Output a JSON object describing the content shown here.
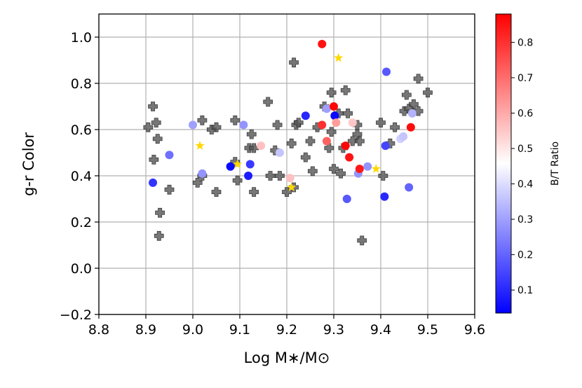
{
  "chart_data": {
    "type": "scatter",
    "xlabel": "Log M∗/M⊙",
    "ylabel": "g-r Color",
    "xlim": [
      8.8,
      9.6
    ],
    "ylim": [
      -0.2,
      1.1
    ],
    "xticks": [
      "8.8",
      "8.9",
      "9.0",
      "9.1",
      "9.2",
      "9.3",
      "9.4",
      "9.5",
      "9.6"
    ],
    "yticks": [
      "−0.2",
      "0.0",
      "0.2",
      "0.4",
      "0.6",
      "0.8",
      "1.0"
    ],
    "grid": true,
    "colorbar": {
      "label": "B/T Ratio",
      "range": [
        0.035,
        0.88
      ],
      "ticks": [
        "0.1",
        "0.2",
        "0.3",
        "0.4",
        "0.5",
        "0.6",
        "0.7",
        "0.8"
      ],
      "colormap": "bwr",
      "low_color": "#0000ff",
      "mid_color": "#ffffff",
      "high_color": "#ff0000"
    },
    "series": [
      {
        "marker": "plus",
        "color": "#555555",
        "points": [
          [
            8.905,
            0.61
          ],
          [
            8.915,
            0.7
          ],
          [
            8.917,
            0.47
          ],
          [
            8.922,
            0.63
          ],
          [
            8.925,
            0.56
          ],
          [
            8.93,
            0.24
          ],
          [
            8.928,
            0.14
          ],
          [
            8.95,
            0.34
          ],
          [
            9.01,
            0.37
          ],
          [
            9.02,
            0.64
          ],
          [
            9.02,
            0.4
          ],
          [
            9.04,
            0.6
          ],
          [
            9.05,
            0.33
          ],
          [
            9.05,
            0.61
          ],
          [
            9.09,
            0.64
          ],
          [
            9.09,
            0.46
          ],
          [
            9.095,
            0.38
          ],
          [
            9.12,
            0.52
          ],
          [
            9.125,
            0.58
          ],
          [
            9.13,
            0.52
          ],
          [
            9.13,
            0.33
          ],
          [
            9.16,
            0.72
          ],
          [
            9.165,
            0.4
          ],
          [
            9.175,
            0.51
          ],
          [
            9.18,
            0.62
          ],
          [
            9.185,
            0.4
          ],
          [
            9.2,
            0.33
          ],
          [
            9.21,
            0.54
          ],
          [
            9.215,
            0.35
          ],
          [
            9.215,
            0.89
          ],
          [
            9.22,
            0.62
          ],
          [
            9.225,
            0.63
          ],
          [
            9.24,
            0.48
          ],
          [
            9.25,
            0.55
          ],
          [
            9.255,
            0.42
          ],
          [
            9.265,
            0.61
          ],
          [
            9.28,
            0.7
          ],
          [
            9.29,
            0.52
          ],
          [
            9.295,
            0.76
          ],
          [
            9.295,
            0.59
          ],
          [
            9.3,
            0.43
          ],
          [
            9.31,
            0.67
          ],
          [
            9.315,
            0.41
          ],
          [
            9.32,
            0.52
          ],
          [
            9.325,
            0.77
          ],
          [
            9.33,
            0.67
          ],
          [
            9.34,
            0.55
          ],
          [
            9.35,
            0.62
          ],
          [
            9.35,
            0.58
          ],
          [
            9.355,
            0.55
          ],
          [
            9.36,
            0.12
          ],
          [
            9.4,
            0.63
          ],
          [
            9.405,
            0.4
          ],
          [
            9.42,
            0.54
          ],
          [
            9.43,
            0.61
          ],
          [
            9.45,
            0.68
          ],
          [
            9.455,
            0.75
          ],
          [
            9.46,
            0.69
          ],
          [
            9.47,
            0.71
          ],
          [
            9.48,
            0.82
          ],
          [
            9.48,
            0.68
          ],
          [
            9.5,
            0.76
          ]
        ]
      },
      {
        "marker": "star",
        "color": "#ffd700",
        "points": [
          [
            9.015,
            0.53
          ],
          [
            9.095,
            0.45
          ],
          [
            9.21,
            0.35
          ],
          [
            9.31,
            0.91
          ],
          [
            9.39,
            0.43
          ]
        ]
      },
      {
        "marker": "circle",
        "colored_by": "B/T Ratio",
        "points": [
          [
            8.915,
            0.37,
            0.12
          ],
          [
            8.95,
            0.49,
            0.22
          ],
          [
            9.0,
            0.62,
            0.3
          ],
          [
            9.02,
            0.41,
            0.28
          ],
          [
            9.08,
            0.44,
            0.05
          ],
          [
            9.108,
            0.62,
            0.28
          ],
          [
            9.118,
            0.4,
            0.08
          ],
          [
            9.122,
            0.45,
            0.13
          ],
          [
            9.145,
            0.53,
            0.56
          ],
          [
            9.185,
            0.5,
            0.36
          ],
          [
            9.207,
            0.39,
            0.56
          ],
          [
            9.24,
            0.66,
            0.1
          ],
          [
            9.275,
            0.97,
            0.85
          ],
          [
            9.275,
            0.62,
            0.8
          ],
          [
            9.285,
            0.55,
            0.72
          ],
          [
            9.285,
            0.69,
            0.3
          ],
          [
            9.3,
            0.7,
            0.87
          ],
          [
            9.302,
            0.66,
            0.05
          ],
          [
            9.305,
            0.63,
            0.62
          ],
          [
            9.325,
            0.53,
            0.87
          ],
          [
            9.328,
            0.3,
            0.18
          ],
          [
            9.333,
            0.48,
            0.85
          ],
          [
            9.34,
            0.63,
            0.55
          ],
          [
            9.352,
            0.41,
            0.28
          ],
          [
            9.355,
            0.43,
            0.84
          ],
          [
            9.372,
            0.44,
            0.28
          ],
          [
            9.408,
            0.31,
            0.1
          ],
          [
            9.41,
            0.53,
            0.15
          ],
          [
            9.412,
            0.85,
            0.18
          ],
          [
            9.442,
            0.56,
            0.38
          ],
          [
            9.448,
            0.57,
            0.36
          ],
          [
            9.46,
            0.35,
            0.2
          ],
          [
            9.464,
            0.61,
            0.86
          ],
          [
            9.467,
            0.67,
            0.33
          ]
        ]
      }
    ]
  }
}
